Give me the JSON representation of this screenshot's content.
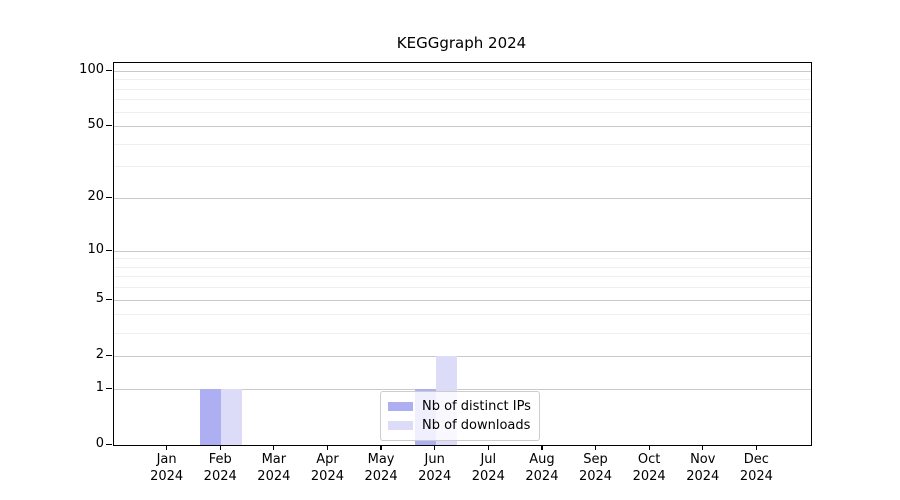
{
  "chart_data": {
    "type": "bar",
    "title": "KEGGgraph 2024",
    "categories": [
      "Jan",
      "Feb",
      "Mar",
      "Apr",
      "May",
      "Jun",
      "Jul",
      "Aug",
      "Sep",
      "Oct",
      "Nov",
      "Dec"
    ],
    "category_year": "2024",
    "series": [
      {
        "name": "Nb of distinct IPs",
        "color": "#aeaef2",
        "values": [
          0,
          1,
          0,
          0,
          0,
          1,
          0,
          0,
          0,
          0,
          0,
          0
        ]
      },
      {
        "name": "Nb of downloads",
        "color": "#dcdcf8",
        "values": [
          0,
          1,
          0,
          0,
          0,
          2,
          0,
          0,
          0,
          0,
          0,
          0
        ]
      }
    ],
    "yscale": "log1p",
    "ylim": [
      0,
      110
    ],
    "y_major_ticks": [
      0,
      1,
      2,
      5,
      10,
      20,
      50,
      100
    ],
    "y_minor_ticks": [
      3,
      4,
      6,
      7,
      8,
      9,
      30,
      40,
      60,
      70,
      80,
      90
    ],
    "xlabel": "",
    "ylabel": "",
    "grid": "horizontal",
    "legend_position": "bottom-center"
  }
}
